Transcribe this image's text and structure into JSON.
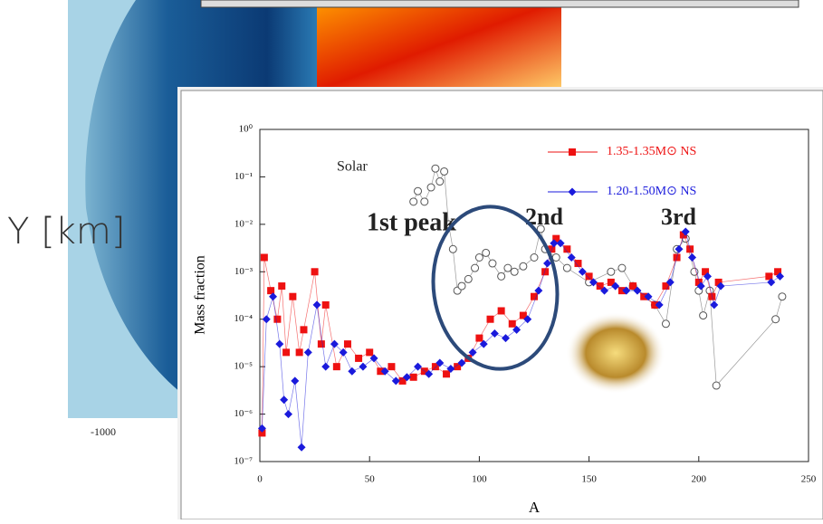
{
  "background": {
    "ylabel": "Y [km]",
    "xtick": "-1000"
  },
  "chart_data": {
    "type": "scatter",
    "log_y": true,
    "xlabel": "A",
    "ylabel": "Mass fraction",
    "xlim": [
      0,
      250
    ],
    "xticks": [
      0,
      50,
      100,
      150,
      200,
      250
    ],
    "ylim": [
      1e-07,
      1
    ],
    "yticks": [
      {
        "value": 1e-07,
        "label": "10⁻⁷"
      },
      {
        "value": 1e-06,
        "label": "10⁻⁶"
      },
      {
        "value": 1e-05,
        "label": "10⁻⁵"
      },
      {
        "value": 0.0001,
        "label": "10⁻⁴"
      },
      {
        "value": 0.001,
        "label": "10⁻³"
      },
      {
        "value": 0.01,
        "label": "10⁻²"
      },
      {
        "value": 0.1,
        "label": "10⁻¹"
      },
      {
        "value": 1,
        "label": "10⁰"
      }
    ],
    "annotations": [
      "Solar",
      "1st peak",
      "2nd",
      "3rd"
    ],
    "series": [
      {
        "name": "1.35-1.35M⊙ NS",
        "color": "#ee1111",
        "marker": "square",
        "x": [
          1,
          2,
          5,
          8,
          10,
          12,
          15,
          18,
          20,
          25,
          28,
          30,
          35,
          40,
          45,
          50,
          55,
          60,
          65,
          70,
          75,
          80,
          85,
          90,
          95,
          100,
          105,
          110,
          115,
          120,
          125,
          130,
          133,
          135,
          140,
          145,
          150,
          155,
          160,
          165,
          170,
          175,
          180,
          185,
          190,
          193,
          196,
          200,
          203,
          206,
          209,
          232,
          236
        ],
        "values": [
          4e-07,
          0.002,
          0.0004,
          0.0001,
          0.0005,
          2e-05,
          0.0003,
          2e-05,
          6e-05,
          0.001,
          3e-05,
          0.0002,
          1e-05,
          3e-05,
          1.5e-05,
          2e-05,
          8e-06,
          1e-05,
          5e-06,
          6e-06,
          8e-06,
          1e-05,
          7e-06,
          1e-05,
          1.5e-05,
          4e-05,
          0.0001,
          0.00015,
          8e-05,
          0.00012,
          0.0003,
          0.001,
          0.003,
          0.005,
          0.003,
          0.0015,
          0.0008,
          0.0005,
          0.0006,
          0.0004,
          0.0005,
          0.0003,
          0.0002,
          0.0005,
          0.002,
          0.006,
          0.003,
          0.0006,
          0.001,
          0.0003,
          0.0006,
          0.0008,
          0.001
        ]
      },
      {
        "name": "1.20-1.50M⊙ NS",
        "color": "#1a1adc",
        "marker": "diamond",
        "x": [
          1,
          3,
          6,
          9,
          11,
          13,
          16,
          19,
          22,
          26,
          30,
          34,
          38,
          42,
          47,
          52,
          57,
          62,
          67,
          72,
          77,
          82,
          87,
          92,
          97,
          102,
          107,
          112,
          117,
          122,
          127,
          131,
          134,
          137,
          142,
          147,
          152,
          157,
          162,
          167,
          172,
          177,
          182,
          187,
          191,
          194,
          197,
          201,
          204,
          207,
          210,
          233,
          237
        ],
        "values": [
          5e-07,
          0.0001,
          0.0003,
          3e-05,
          2e-06,
          1e-06,
          5e-06,
          2e-07,
          2e-05,
          0.0002,
          1e-05,
          3e-05,
          2e-05,
          8e-06,
          1e-05,
          1.5e-05,
          8e-06,
          5e-06,
          6e-06,
          1e-05,
          7e-06,
          1.2e-05,
          9e-06,
          1.2e-05,
          2e-05,
          3e-05,
          5e-05,
          4e-05,
          6e-05,
          0.0001,
          0.0004,
          0.0015,
          0.004,
          0.004,
          0.002,
          0.001,
          0.0006,
          0.0004,
          0.0005,
          0.0004,
          0.0004,
          0.0003,
          0.0002,
          0.0006,
          0.003,
          0.007,
          0.002,
          0.0005,
          0.0008,
          0.0002,
          0.0005,
          0.0006,
          0.0008
        ]
      },
      {
        "name": "Solar",
        "color": "#555555",
        "marker": "circle",
        "x": [
          70,
          72,
          75,
          78,
          80,
          82,
          84,
          86,
          88,
          90,
          92,
          95,
          98,
          100,
          103,
          106,
          110,
          113,
          116,
          120,
          125,
          128,
          130,
          135,
          140,
          150,
          160,
          165,
          170,
          180,
          185,
          190,
          194,
          198,
          200,
          202,
          205,
          208,
          235,
          238
        ],
        "values": [
          0.03,
          0.05,
          0.03,
          0.06,
          0.15,
          0.08,
          0.13,
          0.01,
          0.003,
          0.0004,
          0.0005,
          0.0007,
          0.0012,
          0.002,
          0.0025,
          0.0015,
          0.0008,
          0.0012,
          0.001,
          0.0013,
          0.002,
          0.008,
          0.003,
          0.002,
          0.0012,
          0.0006,
          0.001,
          0.0012,
          0.0005,
          0.0002,
          8e-05,
          0.003,
          0.005,
          0.001,
          0.0004,
          0.00012,
          0.0004,
          4e-06,
          0.0001,
          0.0003
        ]
      }
    ]
  }
}
